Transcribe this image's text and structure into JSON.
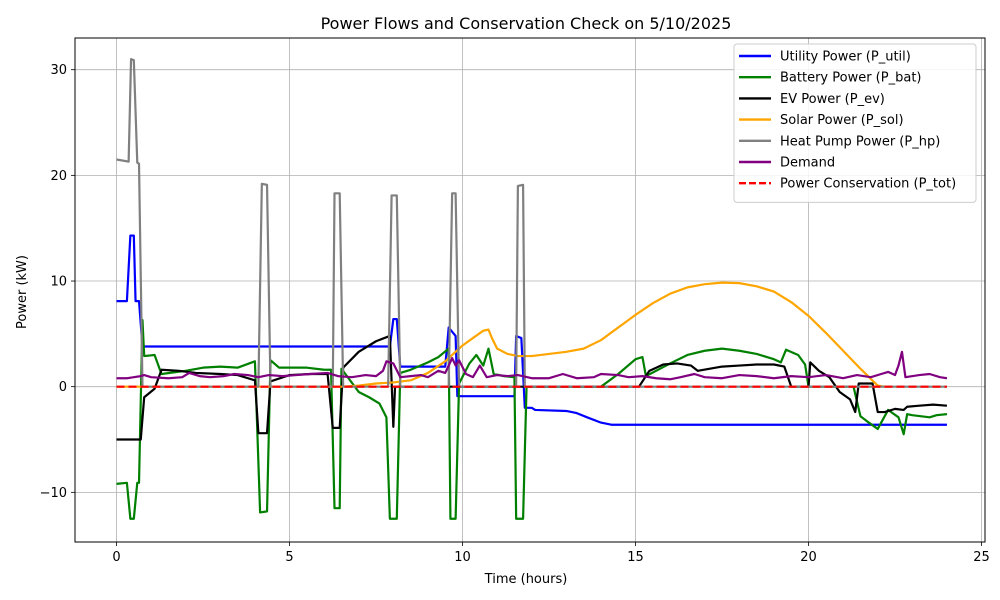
{
  "chart_data": {
    "type": "line",
    "title": "Power Flows and Conservation Check on 5/10/2025",
    "xlabel": "Time (hours)",
    "ylabel": "Power (kW)",
    "xlim": [
      -1.2,
      25.1
    ],
    "ylim": [
      -14.7,
      33.0
    ],
    "xticks": [
      0,
      5,
      10,
      15,
      20,
      25
    ],
    "xtick_labels": [
      "0",
      "5",
      "10",
      "15",
      "20",
      "25"
    ],
    "yticks": [
      -10,
      0,
      10,
      20,
      30
    ],
    "ytick_labels": [
      "−10",
      "0",
      "10",
      "20",
      "30"
    ],
    "grid": true,
    "legend_position": "top-right",
    "series": [
      {
        "name": "Utility Power (P_util)",
        "color": "#0000ff",
        "dash": false,
        "points": [
          [
            0,
            8.1
          ],
          [
            0.3,
            8.1
          ],
          [
            0.4,
            14.3
          ],
          [
            0.5,
            14.3
          ],
          [
            0.55,
            8.1
          ],
          [
            0.65,
            8.1
          ],
          [
            0.75,
            3.8
          ],
          [
            7.9,
            3.8
          ],
          [
            8.0,
            6.4
          ],
          [
            8.1,
            6.4
          ],
          [
            8.2,
            1.9
          ],
          [
            9.5,
            1.9
          ],
          [
            9.6,
            5.6
          ],
          [
            9.8,
            4.8
          ],
          [
            9.85,
            -0.9
          ],
          [
            11.5,
            -0.9
          ],
          [
            11.55,
            4.8
          ],
          [
            11.7,
            4.6
          ],
          [
            11.8,
            -2.0
          ],
          [
            12.0,
            -2.0
          ],
          [
            12.1,
            -2.2
          ],
          [
            13.0,
            -2.3
          ],
          [
            13.3,
            -2.5
          ],
          [
            13.6,
            -2.9
          ],
          [
            14.0,
            -3.4
          ],
          [
            14.3,
            -3.6
          ],
          [
            24,
            -3.6
          ]
        ]
      },
      {
        "name": "Battery Power (P_bat)",
        "color": "#008000",
        "dash": false,
        "points": [
          [
            0,
            -9.2
          ],
          [
            0.3,
            -9.1
          ],
          [
            0.4,
            -12.5
          ],
          [
            0.5,
            -12.5
          ],
          [
            0.6,
            -9.1
          ],
          [
            0.65,
            -9.1
          ],
          [
            0.75,
            6.3
          ],
          [
            0.8,
            2.9
          ],
          [
            1.1,
            3.0
          ],
          [
            1.3,
            1.2
          ],
          [
            2.0,
            1.5
          ],
          [
            2.5,
            1.8
          ],
          [
            3.0,
            1.9
          ],
          [
            3.5,
            1.8
          ],
          [
            4.0,
            2.4
          ],
          [
            4.15,
            -11.9
          ],
          [
            4.35,
            -11.8
          ],
          [
            4.45,
            2.5
          ],
          [
            4.7,
            1.8
          ],
          [
            5.5,
            1.8
          ],
          [
            6.0,
            1.6
          ],
          [
            6.2,
            1.6
          ],
          [
            6.3,
            -11.5
          ],
          [
            6.45,
            -11.5
          ],
          [
            6.5,
            1.7
          ],
          [
            7.0,
            -0.5
          ],
          [
            7.3,
            -1.0
          ],
          [
            7.6,
            -1.6
          ],
          [
            7.8,
            -2.9
          ],
          [
            7.9,
            -12.5
          ],
          [
            8.1,
            -12.5
          ],
          [
            8.2,
            1.3
          ],
          [
            8.5,
            1.6
          ],
          [
            9.0,
            2.3
          ],
          [
            9.3,
            2.8
          ],
          [
            9.6,
            3.6
          ],
          [
            9.65,
            -12.5
          ],
          [
            9.8,
            -12.5
          ],
          [
            9.9,
            0.3
          ],
          [
            10.2,
            2.2
          ],
          [
            10.4,
            3.0
          ],
          [
            10.6,
            2.0
          ],
          [
            10.75,
            3.6
          ],
          [
            10.9,
            1.2
          ],
          [
            11.2,
            1.0
          ],
          [
            11.5,
            0.9
          ],
          [
            11.55,
            -12.5
          ],
          [
            11.75,
            -12.5
          ],
          [
            11.85,
            0.0
          ],
          [
            14.0,
            0.0
          ],
          [
            14.5,
            1.2
          ],
          [
            15.0,
            2.6
          ],
          [
            15.2,
            2.8
          ],
          [
            15.3,
            1.0
          ],
          [
            16.0,
            2.2
          ],
          [
            16.5,
            3.0
          ],
          [
            17.0,
            3.4
          ],
          [
            17.5,
            3.6
          ],
          [
            18.0,
            3.4
          ],
          [
            18.5,
            3.1
          ],
          [
            19.0,
            2.6
          ],
          [
            19.2,
            2.3
          ],
          [
            19.35,
            3.5
          ],
          [
            19.7,
            3.0
          ],
          [
            19.9,
            2.1
          ],
          [
            20.0,
            0.0
          ],
          [
            21.3,
            0.0
          ],
          [
            21.5,
            -2.8
          ],
          [
            21.7,
            -3.3
          ],
          [
            22.0,
            -4.0
          ],
          [
            22.3,
            -2.2
          ],
          [
            22.6,
            -2.9
          ],
          [
            22.75,
            -4.5
          ],
          [
            22.85,
            -2.6
          ],
          [
            23.0,
            -2.7
          ],
          [
            23.5,
            -2.9
          ],
          [
            23.7,
            -2.7
          ],
          [
            24,
            -2.6
          ]
        ]
      },
      {
        "name": "EV Power (P_ev)",
        "color": "#000000",
        "dash": false,
        "points": [
          [
            0,
            -5.0
          ],
          [
            0.7,
            -5.0
          ],
          [
            0.8,
            -1.0
          ],
          [
            1.1,
            -0.2
          ],
          [
            1.3,
            1.6
          ],
          [
            1.8,
            1.5
          ],
          [
            2.3,
            1.3
          ],
          [
            3.0,
            1.2
          ],
          [
            3.5,
            1.1
          ],
          [
            4.0,
            0.6
          ],
          [
            4.1,
            -4.4
          ],
          [
            4.35,
            -4.4
          ],
          [
            4.45,
            0.5
          ],
          [
            5.0,
            1.1
          ],
          [
            5.6,
            1.2
          ],
          [
            6.1,
            1.2
          ],
          [
            6.25,
            -3.9
          ],
          [
            6.45,
            -3.9
          ],
          [
            6.55,
            1.8
          ],
          [
            7.0,
            3.3
          ],
          [
            7.5,
            4.3
          ],
          [
            7.9,
            4.8
          ],
          [
            8.0,
            -3.8
          ],
          [
            8.05,
            0.0
          ],
          [
            15.1,
            0.0
          ],
          [
            15.4,
            1.5
          ],
          [
            15.8,
            2.1
          ],
          [
            16.2,
            2.2
          ],
          [
            16.6,
            2.0
          ],
          [
            16.8,
            1.5
          ],
          [
            17.5,
            1.9
          ],
          [
            18.0,
            2.0
          ],
          [
            18.5,
            2.1
          ],
          [
            19.0,
            2.1
          ],
          [
            19.3,
            1.9
          ],
          [
            19.5,
            0.0
          ],
          [
            20.0,
            0.0
          ],
          [
            20.05,
            2.3
          ],
          [
            20.3,
            1.5
          ],
          [
            20.6,
            0.9
          ],
          [
            20.9,
            -0.5
          ],
          [
            21.2,
            -1.2
          ],
          [
            21.35,
            -2.4
          ],
          [
            21.45,
            0.3
          ],
          [
            21.85,
            0.3
          ],
          [
            22.0,
            -2.4
          ],
          [
            22.2,
            -2.4
          ],
          [
            22.5,
            -2.1
          ],
          [
            22.75,
            -2.2
          ],
          [
            22.85,
            -1.9
          ],
          [
            23.2,
            -1.8
          ],
          [
            23.6,
            -1.7
          ],
          [
            24,
            -1.8
          ]
        ]
      },
      {
        "name": "Solar Power (P_sol)",
        "color": "#ffa500",
        "dash": false,
        "points": [
          [
            0,
            0
          ],
          [
            6.5,
            0
          ],
          [
            7.0,
            0.1
          ],
          [
            7.5,
            0.3
          ],
          [
            8.0,
            0.4
          ],
          [
            8.5,
            0.6
          ],
          [
            9.0,
            1.3
          ],
          [
            9.5,
            2.4
          ],
          [
            10.0,
            3.9
          ],
          [
            10.3,
            4.6
          ],
          [
            10.6,
            5.3
          ],
          [
            10.75,
            5.4
          ],
          [
            10.85,
            4.6
          ],
          [
            11.0,
            3.6
          ],
          [
            11.3,
            3.1
          ],
          [
            11.6,
            2.9
          ],
          [
            12.0,
            2.9
          ],
          [
            12.5,
            3.1
          ],
          [
            13.0,
            3.3
          ],
          [
            13.5,
            3.6
          ],
          [
            14.0,
            4.4
          ],
          [
            14.5,
            5.6
          ],
          [
            15.0,
            6.8
          ],
          [
            15.5,
            7.9
          ],
          [
            16.0,
            8.8
          ],
          [
            16.5,
            9.4
          ],
          [
            17.0,
            9.7
          ],
          [
            17.5,
            9.85
          ],
          [
            18.0,
            9.8
          ],
          [
            18.5,
            9.5
          ],
          [
            19.0,
            9.0
          ],
          [
            19.5,
            8.0
          ],
          [
            20.0,
            6.7
          ],
          [
            20.5,
            5.1
          ],
          [
            21.0,
            3.4
          ],
          [
            21.5,
            1.7
          ],
          [
            22.0,
            0.1
          ],
          [
            22.2,
            0.0
          ]
        ]
      },
      {
        "name": "Heat Pump Power (P_hp)",
        "color": "#808080",
        "dash": false,
        "points": [
          [
            0,
            21.5
          ],
          [
            0.35,
            21.3
          ],
          [
            0.42,
            31.0
          ],
          [
            0.5,
            30.9
          ],
          [
            0.6,
            21.2
          ],
          [
            0.65,
            21.1
          ],
          [
            0.75,
            0.0
          ],
          [
            4.1,
            0.0
          ],
          [
            4.2,
            19.2
          ],
          [
            4.35,
            19.1
          ],
          [
            4.45,
            0.0
          ],
          [
            6.25,
            0.0
          ],
          [
            6.3,
            18.3
          ],
          [
            6.45,
            18.3
          ],
          [
            6.55,
            0.0
          ],
          [
            7.85,
            0.0
          ],
          [
            7.95,
            18.1
          ],
          [
            8.1,
            18.1
          ],
          [
            8.2,
            0.0
          ],
          [
            9.6,
            0.0
          ],
          [
            9.7,
            18.3
          ],
          [
            9.8,
            18.3
          ],
          [
            9.9,
            0.0
          ],
          [
            11.55,
            0.0
          ],
          [
            11.6,
            19.0
          ],
          [
            11.75,
            19.1
          ],
          [
            11.8,
            0.0
          ],
          [
            24,
            0.0
          ]
        ]
      },
      {
        "name": "Demand",
        "color": "#800080",
        "dash": false,
        "points": [
          [
            0,
            0.8
          ],
          [
            0.3,
            0.8
          ],
          [
            0.5,
            0.9
          ],
          [
            0.7,
            1.0
          ],
          [
            0.8,
            1.1
          ],
          [
            1.0,
            0.9
          ],
          [
            1.5,
            0.8
          ],
          [
            1.9,
            0.9
          ],
          [
            2.1,
            1.3
          ],
          [
            2.4,
            1.0
          ],
          [
            2.7,
            0.9
          ],
          [
            3.1,
            1.0
          ],
          [
            3.4,
            1.2
          ],
          [
            3.8,
            1.1
          ],
          [
            4.1,
            0.9
          ],
          [
            4.4,
            1.1
          ],
          [
            4.8,
            1.0
          ],
          [
            5.2,
            1.1
          ],
          [
            5.6,
            1.2
          ],
          [
            6.1,
            1.3
          ],
          [
            6.4,
            1.0
          ],
          [
            6.8,
            0.9
          ],
          [
            7.2,
            1.1
          ],
          [
            7.5,
            1.0
          ],
          [
            7.7,
            1.5
          ],
          [
            7.8,
            2.4
          ],
          [
            8.0,
            2.2
          ],
          [
            8.2,
            0.9
          ],
          [
            8.5,
            1.0
          ],
          [
            8.8,
            1.1
          ],
          [
            9.0,
            0.9
          ],
          [
            9.3,
            1.5
          ],
          [
            9.5,
            1.3
          ],
          [
            9.7,
            2.7
          ],
          [
            9.8,
            2.0
          ],
          [
            9.9,
            2.5
          ],
          [
            10.1,
            1.2
          ],
          [
            10.3,
            0.9
          ],
          [
            10.5,
            2.0
          ],
          [
            10.7,
            0.9
          ],
          [
            11.0,
            1.1
          ],
          [
            11.3,
            1.0
          ],
          [
            11.6,
            1.1
          ],
          [
            12.0,
            0.8
          ],
          [
            12.5,
            0.8
          ],
          [
            12.9,
            1.2
          ],
          [
            13.3,
            0.8
          ],
          [
            13.8,
            0.9
          ],
          [
            14.0,
            1.2
          ],
          [
            14.5,
            1.1
          ],
          [
            14.8,
            0.9
          ],
          [
            15.2,
            1.0
          ],
          [
            15.6,
            0.8
          ],
          [
            16.0,
            0.7
          ],
          [
            16.3,
            0.9
          ],
          [
            16.7,
            1.2
          ],
          [
            17.0,
            0.9
          ],
          [
            17.5,
            0.8
          ],
          [
            18.0,
            1.1
          ],
          [
            18.5,
            1.0
          ],
          [
            19.0,
            0.8
          ],
          [
            19.5,
            1.0
          ],
          [
            20.0,
            0.9
          ],
          [
            20.5,
            1.1
          ],
          [
            21.0,
            0.8
          ],
          [
            21.4,
            1.1
          ],
          [
            21.8,
            0.9
          ],
          [
            22.1,
            1.2
          ],
          [
            22.3,
            1.4
          ],
          [
            22.5,
            1.1
          ],
          [
            22.6,
            2.0
          ],
          [
            22.7,
            3.3
          ],
          [
            22.8,
            0.9
          ],
          [
            23.2,
            1.1
          ],
          [
            23.5,
            1.2
          ],
          [
            23.8,
            0.9
          ],
          [
            24,
            0.8
          ]
        ]
      },
      {
        "name": "Power Conservation (P_tot)",
        "color": "#ff0000",
        "dash": true,
        "points": [
          [
            0,
            0
          ],
          [
            24,
            0
          ]
        ]
      }
    ]
  }
}
